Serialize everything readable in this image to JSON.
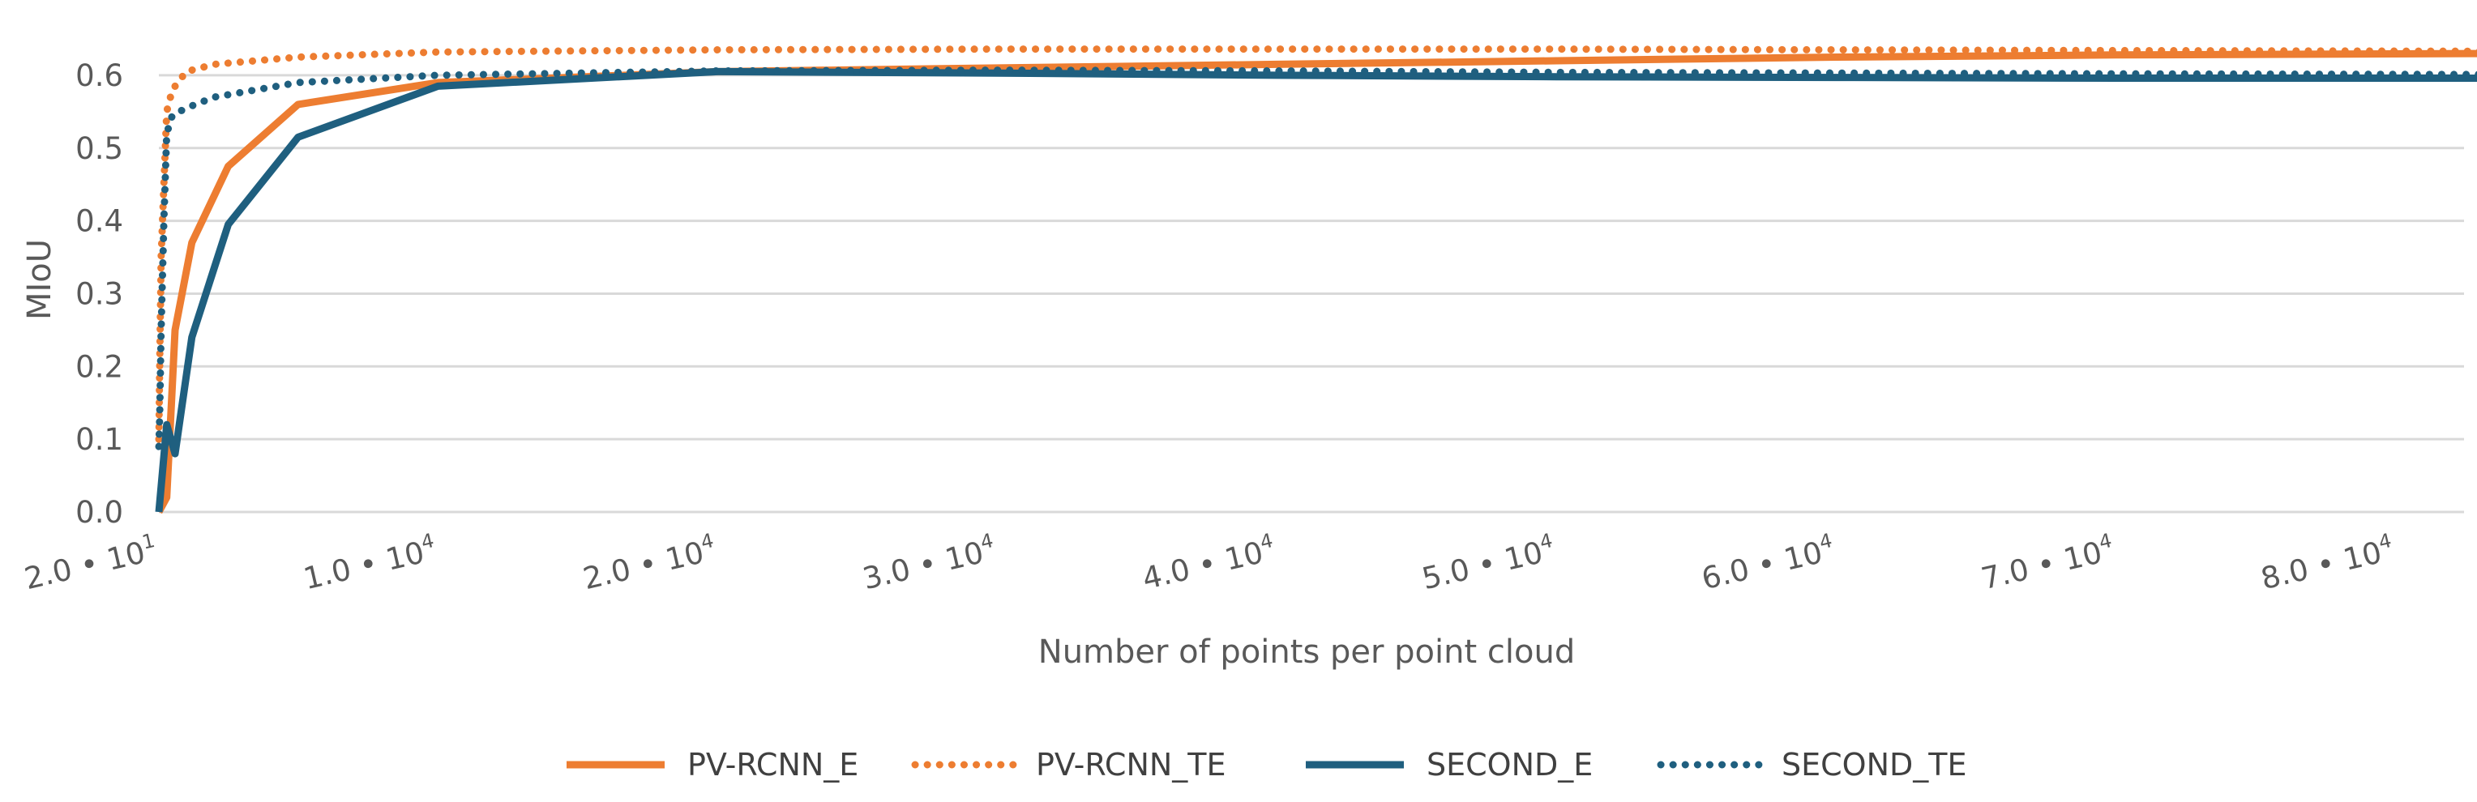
{
  "chart_data": {
    "type": "line",
    "title": "",
    "xlabel": "Number of points per point cloud",
    "ylabel": "MIoU",
    "xlim": [
      20,
      84000
    ],
    "ylim": [
      0,
      0.6
    ],
    "y_ticks": [
      "0.0",
      "0.1",
      "0.2",
      "0.3",
      "0.4",
      "0.5",
      "0.6"
    ],
    "x_ticks": [
      {
        "value": 20,
        "mantissa": "2.0",
        "exp": "1"
      },
      {
        "value": 10000,
        "mantissa": "1.0",
        "exp": "4"
      },
      {
        "value": 20000,
        "mantissa": "2.0",
        "exp": "4"
      },
      {
        "value": 30000,
        "mantissa": "3.0",
        "exp": "4"
      },
      {
        "value": 40000,
        "mantissa": "4.0",
        "exp": "4"
      },
      {
        "value": 50000,
        "mantissa": "5.0",
        "exp": "4"
      },
      {
        "value": 60000,
        "mantissa": "6.0",
        "exp": "4"
      },
      {
        "value": 70000,
        "mantissa": "7.0",
        "exp": "4"
      },
      {
        "value": 80000,
        "mantissa": "8.0",
        "exp": "4"
      }
    ],
    "grid": "horizontal",
    "legend_position": "bottom",
    "series": [
      {
        "name": "PV-RCNN_E",
        "color": "#ED7D31",
        "dash": "solid",
        "points": [
          [
            20,
            0.0
          ],
          [
            300,
            0.02
          ],
          [
            600,
            0.25
          ],
          [
            1200,
            0.37
          ],
          [
            2500,
            0.475
          ],
          [
            5000,
            0.56
          ],
          [
            10000,
            0.59
          ],
          [
            20000,
            0.605
          ],
          [
            30000,
            0.61
          ],
          [
            40000,
            0.615
          ],
          [
            50000,
            0.62
          ],
          [
            60000,
            0.625
          ],
          [
            70000,
            0.628
          ],
          [
            84000,
            0.63
          ]
        ]
      },
      {
        "name": "PV-RCNN_TE",
        "color": "#ED7D31",
        "dash": "dotted",
        "points": [
          [
            20,
            0.1
          ],
          [
            50,
            0.2
          ],
          [
            100,
            0.35
          ],
          [
            200,
            0.45
          ],
          [
            300,
            0.55
          ],
          [
            500,
            0.58
          ],
          [
            1000,
            0.605
          ],
          [
            2000,
            0.615
          ],
          [
            5000,
            0.625
          ],
          [
            10000,
            0.632
          ],
          [
            20000,
            0.635
          ],
          [
            30000,
            0.636
          ],
          [
            40000,
            0.636
          ],
          [
            50000,
            0.636
          ],
          [
            60000,
            0.635
          ],
          [
            70000,
            0.634
          ],
          [
            84000,
            0.633
          ]
        ]
      },
      {
        "name": "SECOND_E",
        "color": "#1F5F7F",
        "dash": "solid",
        "points": [
          [
            20,
            0.0
          ],
          [
            300,
            0.12
          ],
          [
            600,
            0.08
          ],
          [
            1200,
            0.24
          ],
          [
            2500,
            0.395
          ],
          [
            5000,
            0.515
          ],
          [
            10000,
            0.585
          ],
          [
            20000,
            0.605
          ],
          [
            30000,
            0.603
          ],
          [
            40000,
            0.6
          ],
          [
            50000,
            0.598
          ],
          [
            60000,
            0.597
          ],
          [
            70000,
            0.596
          ],
          [
            84000,
            0.596
          ]
        ]
      },
      {
        "name": "SECOND_TE",
        "color": "#1F5F7F",
        "dash": "dotted",
        "points": [
          [
            20,
            0.09
          ],
          [
            50,
            0.13
          ],
          [
            100,
            0.25
          ],
          [
            200,
            0.4
          ],
          [
            300,
            0.52
          ],
          [
            500,
            0.545
          ],
          [
            1000,
            0.555
          ],
          [
            2000,
            0.57
          ],
          [
            5000,
            0.59
          ],
          [
            10000,
            0.6
          ],
          [
            20000,
            0.606
          ],
          [
            30000,
            0.607
          ],
          [
            40000,
            0.606
          ],
          [
            50000,
            0.604
          ],
          [
            60000,
            0.603
          ],
          [
            70000,
            0.602
          ],
          [
            84000,
            0.601
          ]
        ]
      }
    ]
  }
}
